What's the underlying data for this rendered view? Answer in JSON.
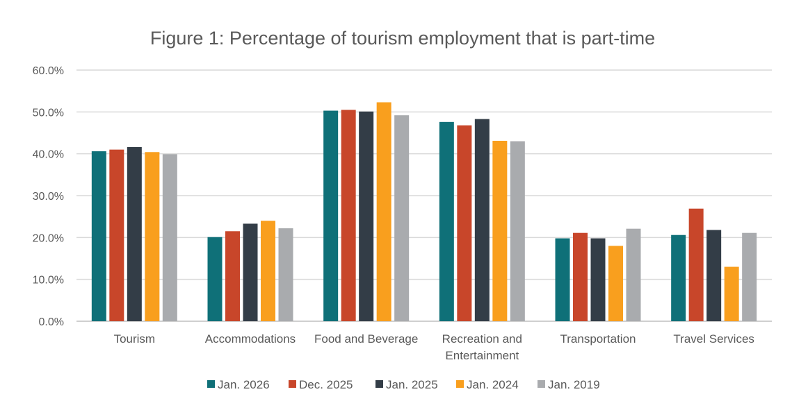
{
  "chart_data": {
    "type": "bar",
    "title": "Figure 1: Percentage of tourism employment that is part-time",
    "xlabel": "",
    "ylabel": "",
    "ylim": [
      0,
      60
    ],
    "yticks": [
      "0.0%",
      "10.0%",
      "20.0%",
      "30.0%",
      "40.0%",
      "50.0%",
      "60.0%"
    ],
    "grid": true,
    "legend_position": "bottom",
    "categories": [
      [
        "Tourism"
      ],
      [
        "Accommodations"
      ],
      [
        "Food and Beverage"
      ],
      [
        "Recreation and",
        "Entertainment"
      ],
      [
        "Transportation"
      ],
      [
        "Travel Services"
      ]
    ],
    "series": [
      {
        "name": "Jan. 2026",
        "color": "#0f7078",
        "values": [
          40.6,
          20.1,
          50.3,
          47.6,
          19.8,
          20.6
        ]
      },
      {
        "name": "Dec. 2025",
        "color": "#c8462a",
        "values": [
          41.0,
          21.5,
          50.5,
          46.8,
          21.1,
          26.9
        ]
      },
      {
        "name": "Jan. 2025",
        "color": "#333d47",
        "values": [
          41.6,
          23.3,
          50.1,
          48.3,
          19.8,
          21.8
        ]
      },
      {
        "name": "Jan. 2024",
        "color": "#f99f1e",
        "values": [
          40.4,
          24.0,
          52.3,
          43.1,
          18.0,
          13.0
        ]
      },
      {
        "name": "Jan. 2019",
        "color": "#a9abae",
        "values": [
          39.9,
          22.2,
          49.2,
          43.0,
          22.1,
          21.1
        ]
      }
    ]
  }
}
